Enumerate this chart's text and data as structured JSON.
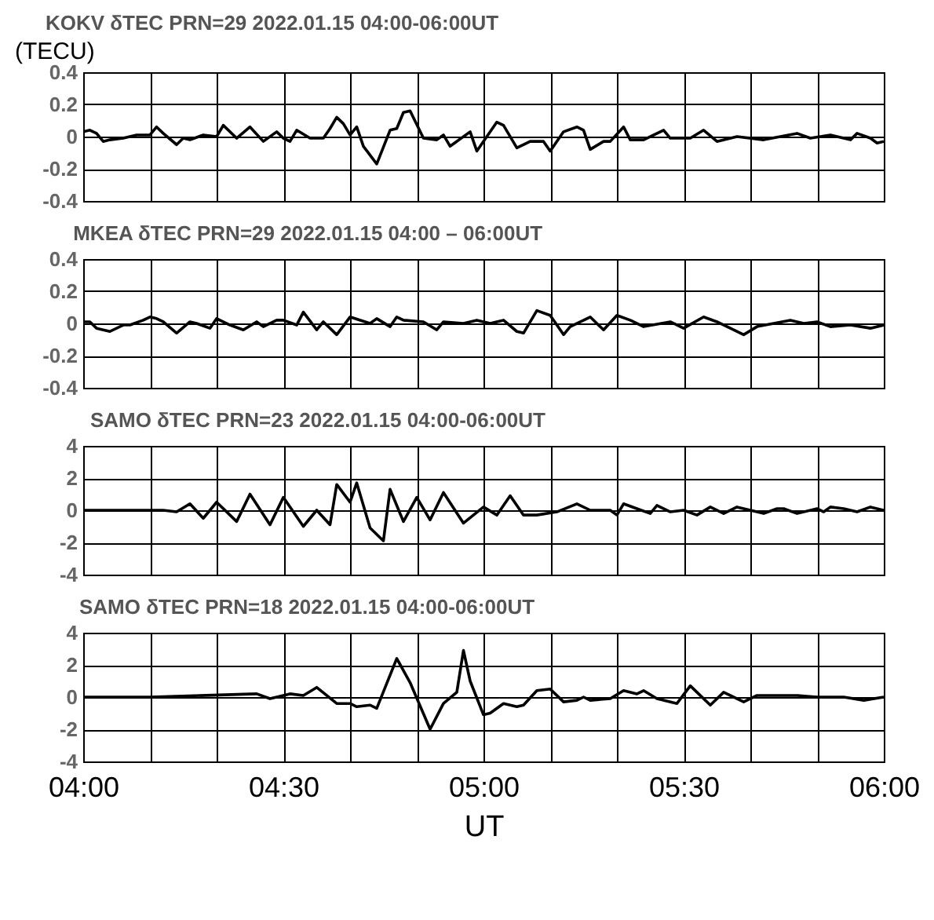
{
  "chart_data": [
    {
      "type": "line",
      "title": "KOKV δTEC PRN=29 2022.01.15 04:00-06:00UT",
      "ylabel": "(TECU)",
      "xlim": [
        "2022-01-15T04:00",
        "2022-01-15T06:00"
      ],
      "ylim": [
        -0.4,
        0.4
      ],
      "yticks": [
        -0.4,
        -0.2,
        0,
        0.2,
        0.4
      ],
      "xticks": [
        {
          "value": "2022-01-15T04:00",
          "label": null
        },
        {
          "value": "2022-01-15T04:10",
          "label": null
        },
        {
          "value": "2022-01-15T04:20",
          "label": null
        },
        {
          "value": "2022-01-15T04:30",
          "label": null
        },
        {
          "value": "2022-01-15T04:40",
          "label": null
        },
        {
          "value": "2022-01-15T04:50",
          "label": null
        },
        {
          "value": "2022-01-15T05:00",
          "label": null
        },
        {
          "value": "2022-01-15T05:10",
          "label": null
        },
        {
          "value": "2022-01-15T05:20",
          "label": null
        },
        {
          "value": "2022-01-15T05:30",
          "label": null
        },
        {
          "value": "2022-01-15T05:40",
          "label": null
        },
        {
          "value": "2022-01-15T05:50",
          "label": null
        },
        {
          "value": "2022-01-15T06:00",
          "label": null
        }
      ],
      "grid": true,
      "tick_labels": "y",
      "series": [
        {
          "color": "#000000",
          "x": [
            "2022-01-15T04:00",
            "2022-01-15T04:01",
            "2022-01-15T04:02",
            "2022-01-15T04:03",
            "2022-01-15T04:04",
            "2022-01-15T04:06",
            "2022-01-15T04:08",
            "2022-01-15T04:10",
            "2022-01-15T04:11",
            "2022-01-15T04:12",
            "2022-01-15T04:14",
            "2022-01-15T04:15",
            "2022-01-15T04:16",
            "2022-01-15T04:18",
            "2022-01-15T04:20",
            "2022-01-15T04:21",
            "2022-01-15T04:23",
            "2022-01-15T04:25",
            "2022-01-15T04:27",
            "2022-01-15T04:29",
            "2022-01-15T04:30",
            "2022-01-15T04:31",
            "2022-01-15T04:32",
            "2022-01-15T04:34",
            "2022-01-15T04:36",
            "2022-01-15T04:37",
            "2022-01-15T04:38",
            "2022-01-15T04:39",
            "2022-01-15T04:40",
            "2022-01-15T04:41",
            "2022-01-15T04:42",
            "2022-01-15T04:44",
            "2022-01-15T04:46",
            "2022-01-15T04:47",
            "2022-01-15T04:48",
            "2022-01-15T04:49",
            "2022-01-15T04:51",
            "2022-01-15T04:53",
            "2022-01-15T04:54",
            "2022-01-15T04:55",
            "2022-01-15T04:58",
            "2022-01-15T04:59",
            "2022-01-15T05:02",
            "2022-01-15T05:03",
            "2022-01-15T05:05",
            "2022-01-15T05:07",
            "2022-01-15T05:09",
            "2022-01-15T05:10",
            "2022-01-15T05:12",
            "2022-01-15T05:14",
            "2022-01-15T05:15",
            "2022-01-15T05:16",
            "2022-01-15T05:18",
            "2022-01-15T05:19",
            "2022-01-15T05:21",
            "2022-01-15T05:22",
            "2022-01-15T05:24",
            "2022-01-15T05:27",
            "2022-01-15T05:28",
            "2022-01-15T05:31",
            "2022-01-15T05:33",
            "2022-01-15T05:35",
            "2022-01-15T05:38",
            "2022-01-15T05:42",
            "2022-01-15T05:47",
            "2022-01-15T05:49",
            "2022-01-15T05:52",
            "2022-01-15T05:55",
            "2022-01-15T05:56",
            "2022-01-15T05:58",
            "2022-01-15T05:59",
            "2022-01-15T06:00"
          ],
          "values": [
            0.03,
            0.04,
            0.02,
            -0.03,
            -0.02,
            -0.01,
            0.01,
            0.01,
            0.06,
            0.02,
            -0.05,
            -0.01,
            -0.02,
            0.01,
            0.0,
            0.07,
            -0.01,
            0.06,
            -0.03,
            0.03,
            -0.01,
            -0.03,
            0.04,
            -0.01,
            -0.01,
            0.05,
            0.12,
            0.08,
            0.01,
            0.06,
            -0.06,
            -0.17,
            0.04,
            0.05,
            0.15,
            0.16,
            -0.01,
            -0.02,
            0.01,
            -0.06,
            0.03,
            -0.09,
            0.09,
            0.07,
            -0.07,
            -0.03,
            -0.03,
            -0.09,
            0.03,
            0.06,
            0.04,
            -0.08,
            -0.03,
            -0.03,
            0.06,
            -0.02,
            -0.02,
            0.04,
            -0.01,
            -0.01,
            0.04,
            -0.03,
            0.0,
            -0.02,
            0.02,
            -0.01,
            0.01,
            -0.02,
            0.02,
            -0.01,
            -0.04,
            -0.03
          ]
        }
      ]
    },
    {
      "type": "line",
      "title": "MKEA δTEC PRN=29 2022.01.15 04:00 – 06:00UT",
      "xlim": [
        "2022-01-15T04:00",
        "2022-01-15T06:00"
      ],
      "ylim": [
        -0.4,
        0.4
      ],
      "yticks": [
        -0.4,
        -0.2,
        0,
        0.2,
        0.4
      ],
      "xticks": [
        {
          "value": "2022-01-15T04:00",
          "label": null
        },
        {
          "value": "2022-01-15T04:10",
          "label": null
        },
        {
          "value": "2022-01-15T04:20",
          "label": null
        },
        {
          "value": "2022-01-15T04:30",
          "label": null
        },
        {
          "value": "2022-01-15T04:40",
          "label": null
        },
        {
          "value": "2022-01-15T04:50",
          "label": null
        },
        {
          "value": "2022-01-15T05:00",
          "label": null
        },
        {
          "value": "2022-01-15T05:10",
          "label": null
        },
        {
          "value": "2022-01-15T05:20",
          "label": null
        },
        {
          "value": "2022-01-15T05:30",
          "label": null
        },
        {
          "value": "2022-01-15T05:40",
          "label": null
        },
        {
          "value": "2022-01-15T05:50",
          "label": null
        },
        {
          "value": "2022-01-15T06:00",
          "label": null
        }
      ],
      "grid": true,
      "tick_labels": "y",
      "series": [
        {
          "color": "#000000",
          "x": [
            "2022-01-15T04:00",
            "2022-01-15T04:01",
            "2022-01-15T04:02",
            "2022-01-15T04:04",
            "2022-01-15T04:06",
            "2022-01-15T04:07",
            "2022-01-15T04:09",
            "2022-01-15T04:10",
            "2022-01-15T04:11",
            "2022-01-15T04:12",
            "2022-01-15T04:14",
            "2022-01-15T04:16",
            "2022-01-15T04:17",
            "2022-01-15T04:19",
            "2022-01-15T04:20",
            "2022-01-15T04:22",
            "2022-01-15T04:24",
            "2022-01-15T04:26",
            "2022-01-15T04:27",
            "2022-01-15T04:29",
            "2022-01-15T04:30",
            "2022-01-15T04:32",
            "2022-01-15T04:33",
            "2022-01-15T04:35",
            "2022-01-15T04:36",
            "2022-01-15T04:38",
            "2022-01-15T04:40",
            "2022-01-15T04:43",
            "2022-01-15T04:44",
            "2022-01-15T04:46",
            "2022-01-15T04:47",
            "2022-01-15T04:48",
            "2022-01-15T04:51",
            "2022-01-15T04:53",
            "2022-01-15T04:54",
            "2022-01-15T04:57",
            "2022-01-15T04:59",
            "2022-01-15T05:01",
            "2022-01-15T05:03",
            "2022-01-15T05:05",
            "2022-01-15T05:06",
            "2022-01-15T05:08",
            "2022-01-15T05:10",
            "2022-01-15T05:12",
            "2022-01-15T05:13",
            "2022-01-15T05:16",
            "2022-01-15T05:18",
            "2022-01-15T05:20",
            "2022-01-15T05:22",
            "2022-01-15T05:24",
            "2022-01-15T05:28",
            "2022-01-15T05:30",
            "2022-01-15T05:33",
            "2022-01-15T05:35",
            "2022-01-15T05:39",
            "2022-01-15T05:41",
            "2022-01-15T05:46",
            "2022-01-15T05:48",
            "2022-01-15T05:50",
            "2022-01-15T05:52",
            "2022-01-15T05:55",
            "2022-01-15T05:58",
            "2022-01-15T06:00"
          ],
          "values": [
            0.01,
            0.01,
            -0.03,
            -0.05,
            -0.01,
            -0.01,
            0.02,
            0.04,
            0.03,
            0.01,
            -0.06,
            0.01,
            0.0,
            -0.03,
            0.03,
            -0.01,
            -0.04,
            0.01,
            -0.02,
            0.02,
            0.02,
            -0.01,
            0.07,
            -0.04,
            0.01,
            -0.07,
            0.04,
            0.0,
            0.03,
            -0.02,
            0.04,
            0.02,
            0.01,
            -0.04,
            0.01,
            0.0,
            0.02,
            0.0,
            0.02,
            -0.05,
            -0.06,
            0.08,
            0.05,
            -0.07,
            -0.02,
            0.04,
            -0.04,
            0.05,
            0.02,
            -0.02,
            0.01,
            -0.03,
            0.04,
            0.01,
            -0.07,
            -0.02,
            0.02,
            0.0,
            0.01,
            -0.02,
            -0.01,
            -0.03,
            -0.01
          ]
        }
      ]
    },
    {
      "type": "line",
      "title": "SAMO δTEC PRN=23 2022.01.15 04:00-06:00UT",
      "xlim": [
        "2022-01-15T04:00",
        "2022-01-15T06:00"
      ],
      "ylim": [
        -4,
        4
      ],
      "yticks": [
        -4,
        -2,
        0,
        2,
        4
      ],
      "xticks": [
        {
          "value": "2022-01-15T04:00",
          "label": null
        },
        {
          "value": "2022-01-15T04:10",
          "label": null
        },
        {
          "value": "2022-01-15T04:20",
          "label": null
        },
        {
          "value": "2022-01-15T04:30",
          "label": null
        },
        {
          "value": "2022-01-15T04:40",
          "label": null
        },
        {
          "value": "2022-01-15T04:50",
          "label": null
        },
        {
          "value": "2022-01-15T05:00",
          "label": null
        },
        {
          "value": "2022-01-15T05:10",
          "label": null
        },
        {
          "value": "2022-01-15T05:20",
          "label": null
        },
        {
          "value": "2022-01-15T05:30",
          "label": null
        },
        {
          "value": "2022-01-15T05:40",
          "label": null
        },
        {
          "value": "2022-01-15T05:50",
          "label": null
        },
        {
          "value": "2022-01-15T06:00",
          "label": null
        }
      ],
      "grid": true,
      "tick_labels": "y",
      "series": [
        {
          "color": "#000000",
          "x": [
            "2022-01-15T04:00",
            "2022-01-15T04:05",
            "2022-01-15T04:12",
            "2022-01-15T04:14",
            "2022-01-15T04:16",
            "2022-01-15T04:18",
            "2022-01-15T04:20",
            "2022-01-15T04:23",
            "2022-01-15T04:25",
            "2022-01-15T04:28",
            "2022-01-15T04:30",
            "2022-01-15T04:33",
            "2022-01-15T04:35",
            "2022-01-15T04:37",
            "2022-01-15T04:38",
            "2022-01-15T04:40",
            "2022-01-15T04:41",
            "2022-01-15T04:43",
            "2022-01-15T04:45",
            "2022-01-15T04:46",
            "2022-01-15T04:48",
            "2022-01-15T04:50",
            "2022-01-15T04:52",
            "2022-01-15T04:54",
            "2022-01-15T04:57",
            "2022-01-15T05:00",
            "2022-01-15T05:02",
            "2022-01-15T05:04",
            "2022-01-15T05:06",
            "2022-01-15T05:08",
            "2022-01-15T05:11",
            "2022-01-15T05:14",
            "2022-01-15T05:16",
            "2022-01-15T05:19",
            "2022-01-15T05:20",
            "2022-01-15T05:21",
            "2022-01-15T05:23",
            "2022-01-15T05:25",
            "2022-01-15T05:26",
            "2022-01-15T05:28",
            "2022-01-15T05:30",
            "2022-01-15T05:32",
            "2022-01-15T05:34",
            "2022-01-15T05:36",
            "2022-01-15T05:38",
            "2022-01-15T05:41",
            "2022-01-15T05:42",
            "2022-01-15T05:44",
            "2022-01-15T05:45",
            "2022-01-15T05:47",
            "2022-01-15T05:50",
            "2022-01-15T05:51",
            "2022-01-15T05:52",
            "2022-01-15T05:54",
            "2022-01-15T05:56",
            "2022-01-15T05:58",
            "2022-01-15T06:00"
          ],
          "values": [
            0.0,
            0.0,
            0.0,
            -0.1,
            0.4,
            -0.5,
            0.5,
            -0.7,
            1.0,
            -0.9,
            0.8,
            -1.0,
            0.0,
            -0.9,
            1.6,
            0.5,
            1.7,
            -1.1,
            -1.9,
            1.3,
            -0.7,
            0.8,
            -0.6,
            1.1,
            -0.8,
            0.2,
            -0.3,
            0.9,
            -0.3,
            -0.3,
            -0.1,
            0.4,
            0.0,
            0.0,
            -0.3,
            0.4,
            0.1,
            -0.2,
            0.3,
            -0.1,
            0.0,
            -0.3,
            0.2,
            -0.2,
            0.2,
            -0.1,
            -0.2,
            0.1,
            0.1,
            -0.2,
            0.1,
            -0.1,
            0.2,
            0.1,
            -0.1,
            0.2,
            0.0
          ]
        }
      ]
    },
    {
      "type": "line",
      "title": "SAMO δTEC PRN=18 2022.01.15 04:00-06:00UT",
      "xlabel": "UT",
      "xlim": [
        "2022-01-15T04:00",
        "2022-01-15T06:00"
      ],
      "ylim": [
        -4,
        4
      ],
      "yticks": [
        -4,
        -2,
        0,
        2,
        4
      ],
      "xticks": [
        {
          "value": "2022-01-15T04:00",
          "label": "04:00"
        },
        {
          "value": "2022-01-15T04:10",
          "label": null
        },
        {
          "value": "2022-01-15T04:20",
          "label": null
        },
        {
          "value": "2022-01-15T04:30",
          "label": "04:30"
        },
        {
          "value": "2022-01-15T04:40",
          "label": null
        },
        {
          "value": "2022-01-15T04:50",
          "label": null
        },
        {
          "value": "2022-01-15T05:00",
          "label": "05:00"
        },
        {
          "value": "2022-01-15T05:10",
          "label": null
        },
        {
          "value": "2022-01-15T05:20",
          "label": null
        },
        {
          "value": "2022-01-15T05:30",
          "label": "05:30"
        },
        {
          "value": "2022-01-15T05:40",
          "label": null
        },
        {
          "value": "2022-01-15T05:50",
          "label": null
        },
        {
          "value": "2022-01-15T06:00",
          "label": "06:00"
        }
      ],
      "grid": true,
      "series": [
        {
          "color": "#000000",
          "x": [
            "2022-01-15T04:00",
            "2022-01-15T04:10",
            "2022-01-15T04:26",
            "2022-01-15T04:28",
            "2022-01-15T04:31",
            "2022-01-15T04:33",
            "2022-01-15T04:35",
            "2022-01-15T04:38",
            "2022-01-15T04:40",
            "2022-01-15T04:41",
            "2022-01-15T04:43",
            "2022-01-15T04:44",
            "2022-01-15T04:47",
            "2022-01-15T04:49",
            "2022-01-15T04:52",
            "2022-01-15T04:54",
            "2022-01-15T04:56",
            "2022-01-15T04:57",
            "2022-01-15T04:58",
            "2022-01-15T05:00",
            "2022-01-15T05:01",
            "2022-01-15T05:03",
            "2022-01-15T05:05",
            "2022-01-15T05:06",
            "2022-01-15T05:08",
            "2022-01-15T05:10",
            "2022-01-15T05:12",
            "2022-01-15T05:14",
            "2022-01-15T05:15",
            "2022-01-15T05:16",
            "2022-01-15T05:19",
            "2022-01-15T05:21",
            "2022-01-15T05:23",
            "2022-01-15T05:24",
            "2022-01-15T05:26",
            "2022-01-15T05:29",
            "2022-01-15T05:31",
            "2022-01-15T05:32",
            "2022-01-15T05:34",
            "2022-01-15T05:36",
            "2022-01-15T05:39",
            "2022-01-15T05:41",
            "2022-01-15T05:44",
            "2022-01-15T05:47",
            "2022-01-15T05:50",
            "2022-01-15T05:54",
            "2022-01-15T05:57",
            "2022-01-15T06:00"
          ],
          "values": [
            0.0,
            0.0,
            0.2,
            -0.1,
            0.2,
            0.1,
            0.6,
            -0.4,
            -0.4,
            -0.6,
            -0.5,
            -0.7,
            2.4,
            0.9,
            -2.0,
            -0.4,
            0.3,
            2.9,
            1.0,
            -1.1,
            -1.0,
            -0.4,
            -0.6,
            -0.5,
            0.4,
            0.5,
            -0.3,
            -0.2,
            0.0,
            -0.2,
            -0.1,
            0.4,
            0.2,
            0.4,
            -0.1,
            -0.4,
            0.7,
            0.3,
            -0.5,
            0.3,
            -0.3,
            0.1,
            0.1,
            0.1,
            0.0,
            0.0,
            -0.2,
            0.0
          ]
        }
      ]
    }
  ]
}
